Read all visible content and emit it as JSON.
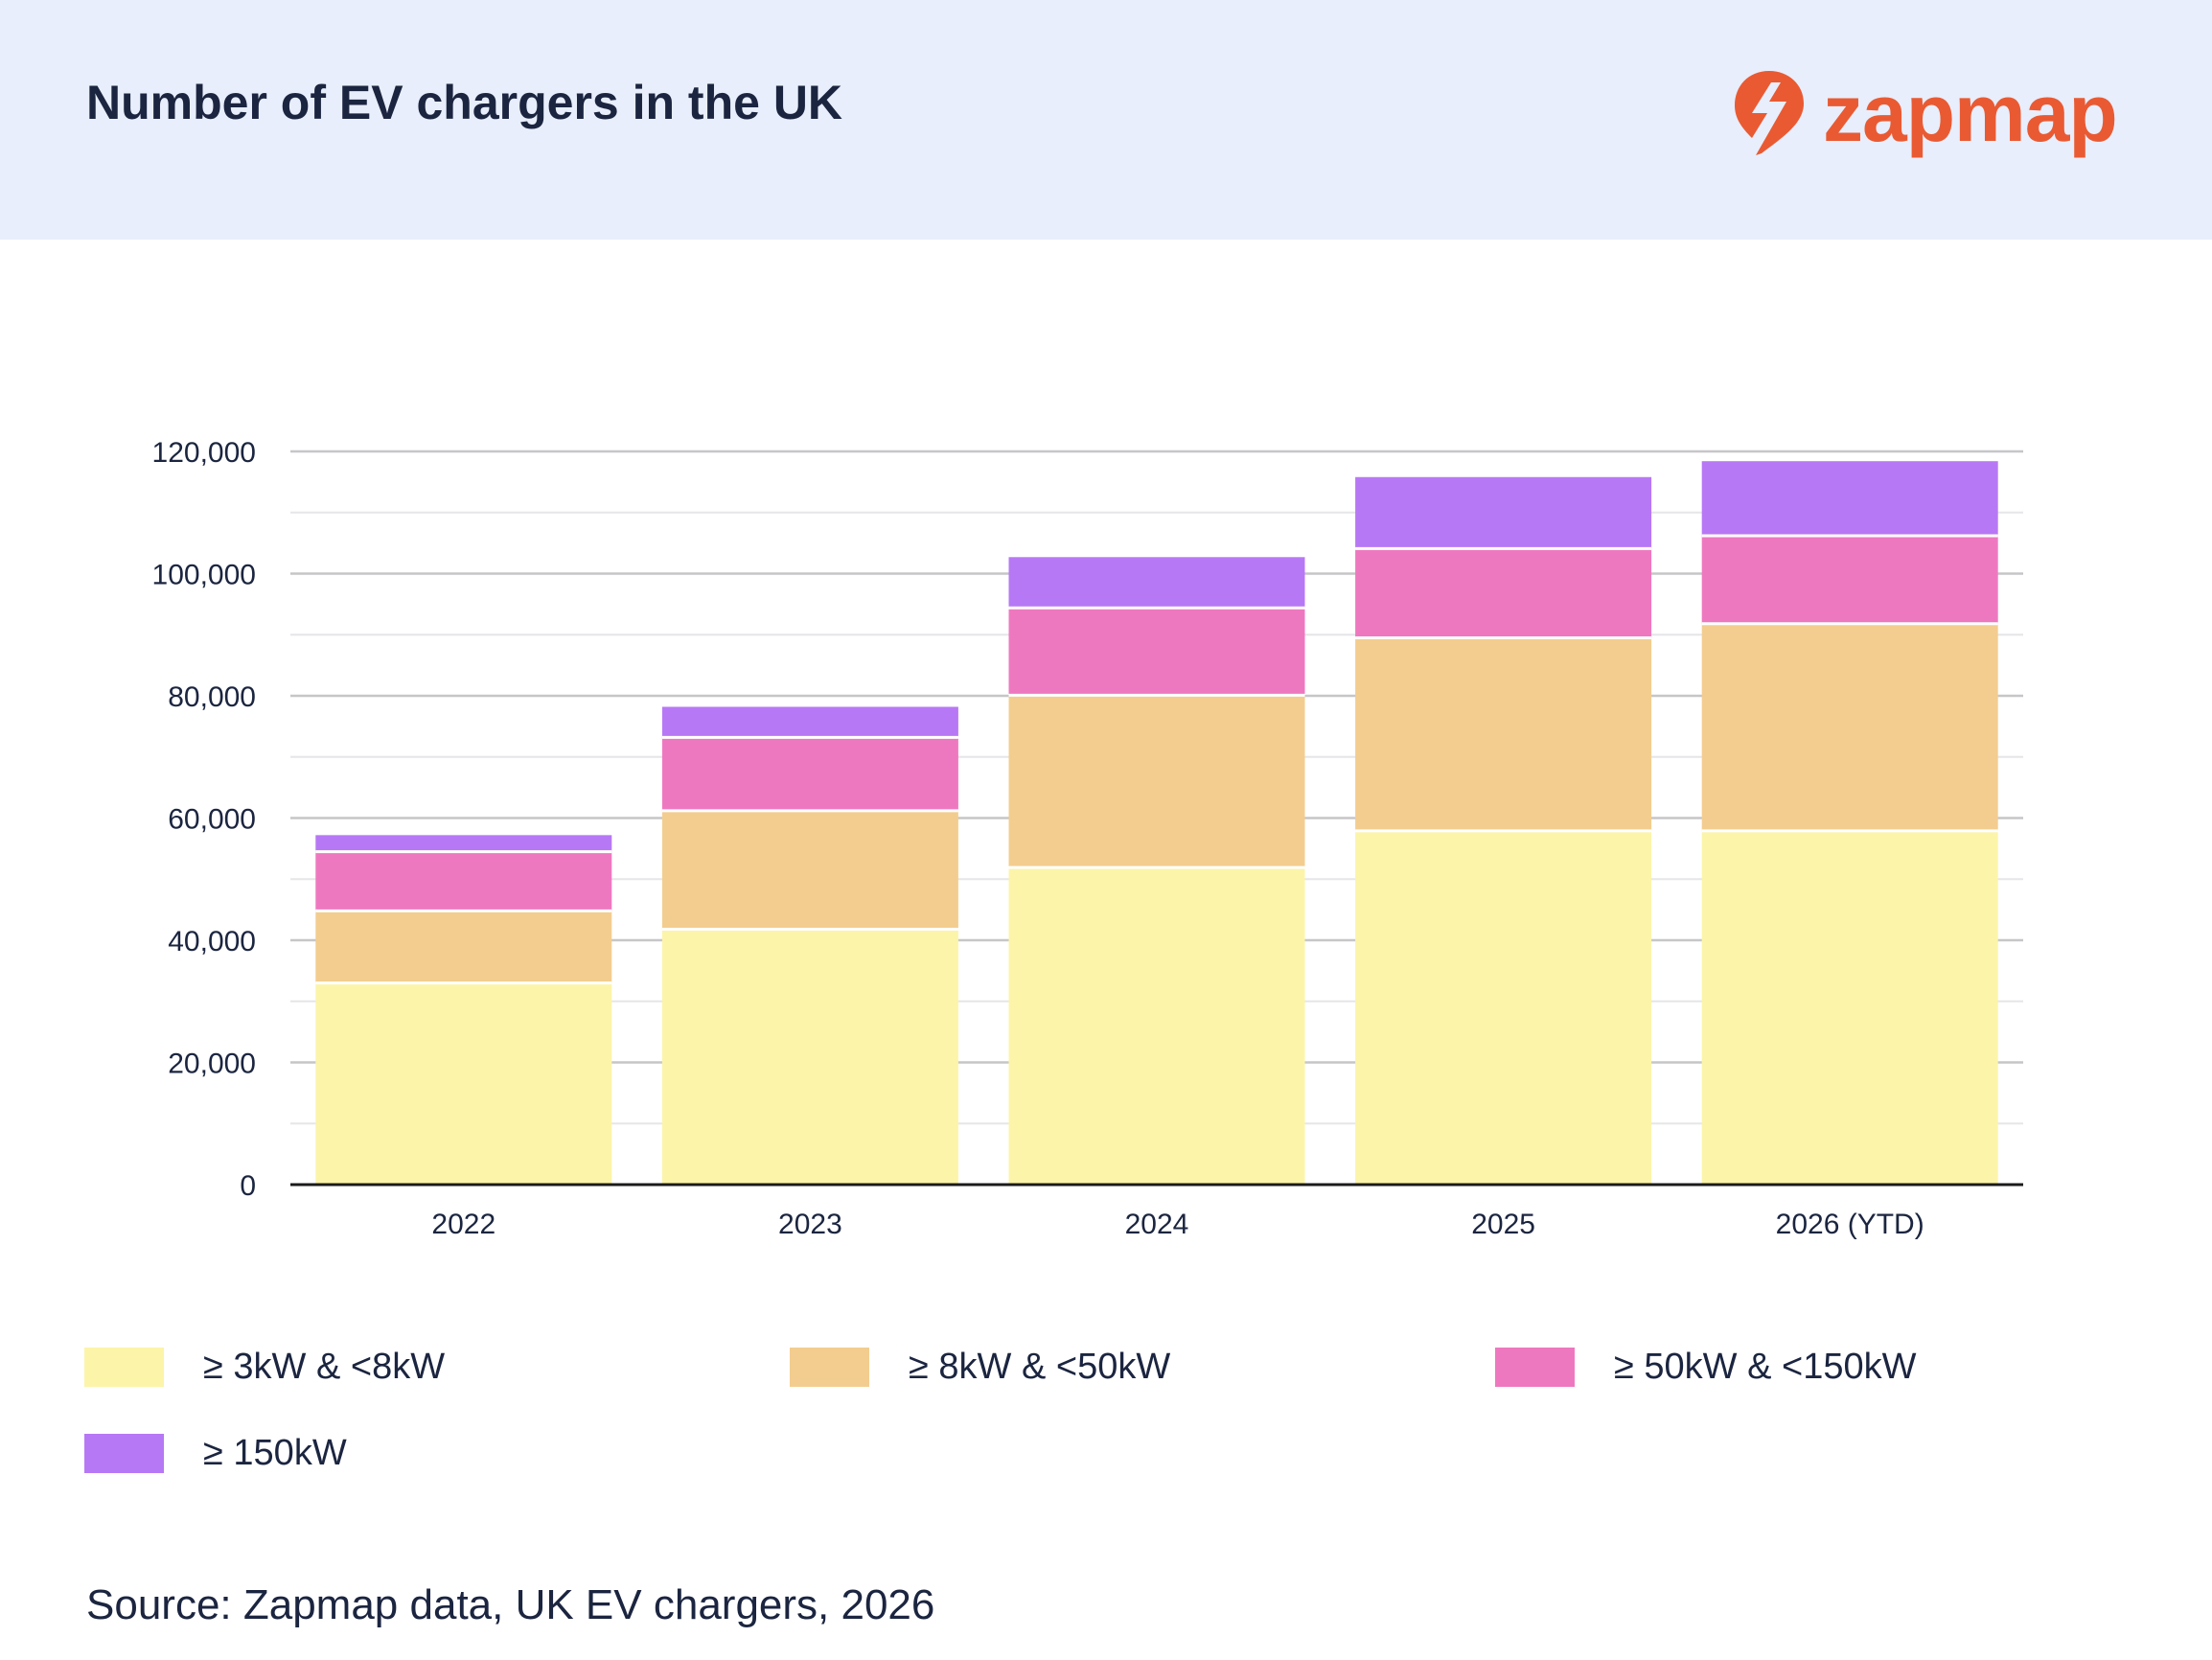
{
  "header": {
    "title": "Number of EV chargers in the UK",
    "logo": "zapmap"
  },
  "colors": {
    "header_bg": "#e8eefb",
    "brand": "#e95a33"
  },
  "chart_data": {
    "type": "bar",
    "stacked": true,
    "title": "Number of EV chargers in the UK",
    "xlabel": "",
    "ylabel": "",
    "categories": [
      "2022",
      "2023",
      "2024",
      "2025",
      "2026 (YTD)"
    ],
    "ylim": [
      0,
      120000
    ],
    "yticks": [
      0,
      20000,
      40000,
      60000,
      80000,
      100000,
      120000
    ],
    "ytick_labels": [
      "0",
      "20,000",
      "40,000",
      "60,000",
      "80,000",
      "100,000",
      "120,000"
    ],
    "grid": true,
    "legend_position": "bottom",
    "series": [
      {
        "name": "≥ 3kW & <8kW",
        "color": "#fcf4a9",
        "values": [
          33000,
          41800,
          51900,
          57900,
          57900
        ]
      },
      {
        "name": "≥ 8kW & <50kW",
        "color": "#f3cd8f",
        "values": [
          11800,
          19400,
          28200,
          31600,
          33900
        ]
      },
      {
        "name": "≥ 50kW & <150kW",
        "color": "#ee78c0",
        "values": [
          9700,
          12000,
          14300,
          14600,
          14400
        ]
      },
      {
        "name": "≥ 150kW",
        "color": "#b778f5",
        "values": [
          2700,
          5000,
          8300,
          11700,
          12200
        ]
      }
    ]
  },
  "source": "Source: Zapmap data, UK EV chargers, 2026"
}
